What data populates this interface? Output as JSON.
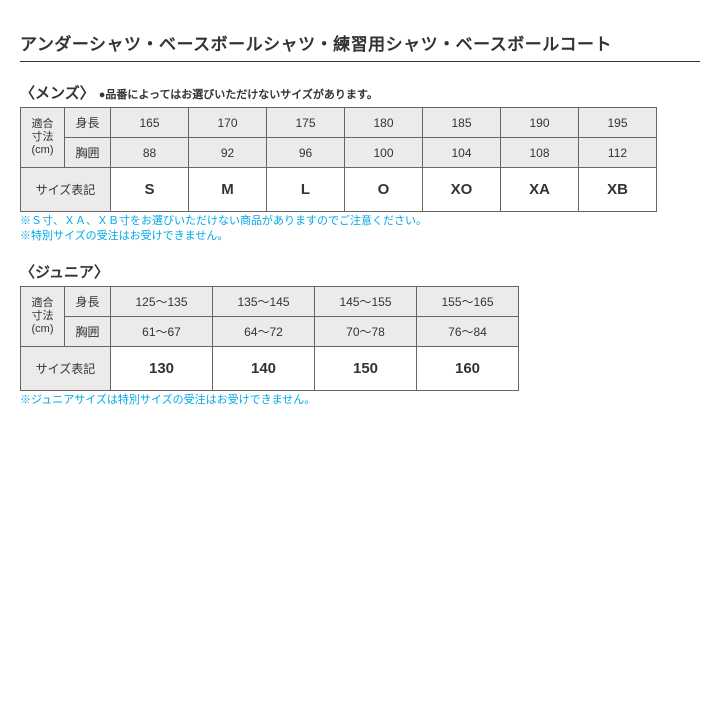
{
  "title": "アンダーシャツ・ベースボールシャツ・練習用シャツ・ベースボールコート",
  "mens": {
    "heading": "〈メンズ〉",
    "heading_note": "●品番によってはお選びいただけないサイズがあります。",
    "fit_label_l1": "適合",
    "fit_label_l2": "寸法",
    "fit_label_l3": "(cm)",
    "height_label": "身長",
    "chest_label": "胸囲",
    "size_line_label": "サイズ表記",
    "heights": [
      "165",
      "170",
      "175",
      "180",
      "185",
      "190",
      "195"
    ],
    "chests": [
      "88",
      "92",
      "96",
      "100",
      "104",
      "108",
      "112"
    ],
    "sizes": [
      "S",
      "M",
      "L",
      "O",
      "XO",
      "XA",
      "XB"
    ],
    "notes": [
      "※Ｓ寸、ＸＡ、ＸＢ寸をお選びいただけない商品がありますのでご注意ください。",
      "※特別サイズの受注はお受けできません。"
    ]
  },
  "junior": {
    "heading": "〈ジュニア〉",
    "fit_label_l1": "適合",
    "fit_label_l2": "寸法",
    "fit_label_l3": "(cm)",
    "height_label": "身長",
    "chest_label": "胸囲",
    "size_line_label": "サイズ表記",
    "heights": [
      "125～135",
      "135～145",
      "145～155",
      "155～165"
    ],
    "chests": [
      "61～67",
      "64～72",
      "70～78",
      "76～84"
    ],
    "sizes": [
      "130",
      "140",
      "150",
      "160"
    ],
    "notes": [
      "※ジュニアサイズは特別サイズの受注はお受けできません。"
    ]
  }
}
